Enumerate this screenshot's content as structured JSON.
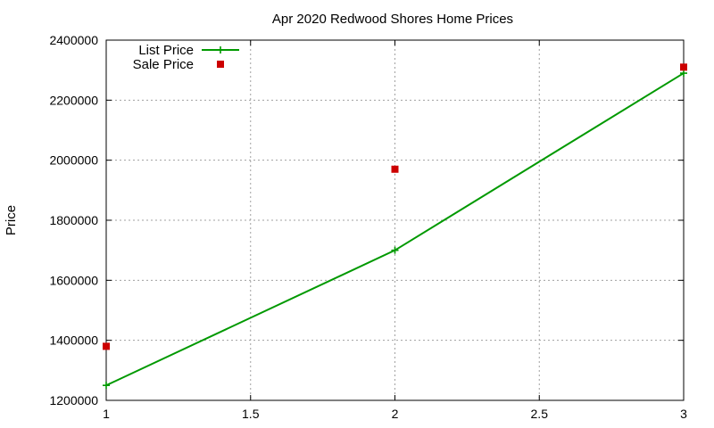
{
  "chart_data": {
    "type": "line",
    "title": "Apr 2020 Redwood Shores Home Prices",
    "xlabel": "",
    "ylabel": "Price",
    "xlim": [
      1,
      3
    ],
    "ylim": [
      1200000,
      2400000
    ],
    "xticks": [
      1,
      1.5,
      2,
      2.5,
      3
    ],
    "xtick_labels": [
      "1",
      "1.5",
      "2",
      "2.5",
      "3"
    ],
    "yticks": [
      1200000,
      1400000,
      1600000,
      1800000,
      2000000,
      2200000,
      2400000
    ],
    "ytick_labels": [
      "1200000",
      "1400000",
      "1600000",
      "1800000",
      "2000000",
      "2200000",
      "2400000"
    ],
    "grid": true,
    "legend_position": "top-left",
    "series": [
      {
        "name": "List Price",
        "style": "line-with-plus-markers",
        "color": "#009900",
        "x": [
          1,
          2,
          3
        ],
        "y": [
          1250000,
          1700000,
          2290000
        ]
      },
      {
        "name": "Sale Price",
        "style": "square-markers",
        "color": "#cc0000",
        "x": [
          1,
          2,
          3
        ],
        "y": [
          1380000,
          1970000,
          2310000
        ]
      }
    ]
  }
}
